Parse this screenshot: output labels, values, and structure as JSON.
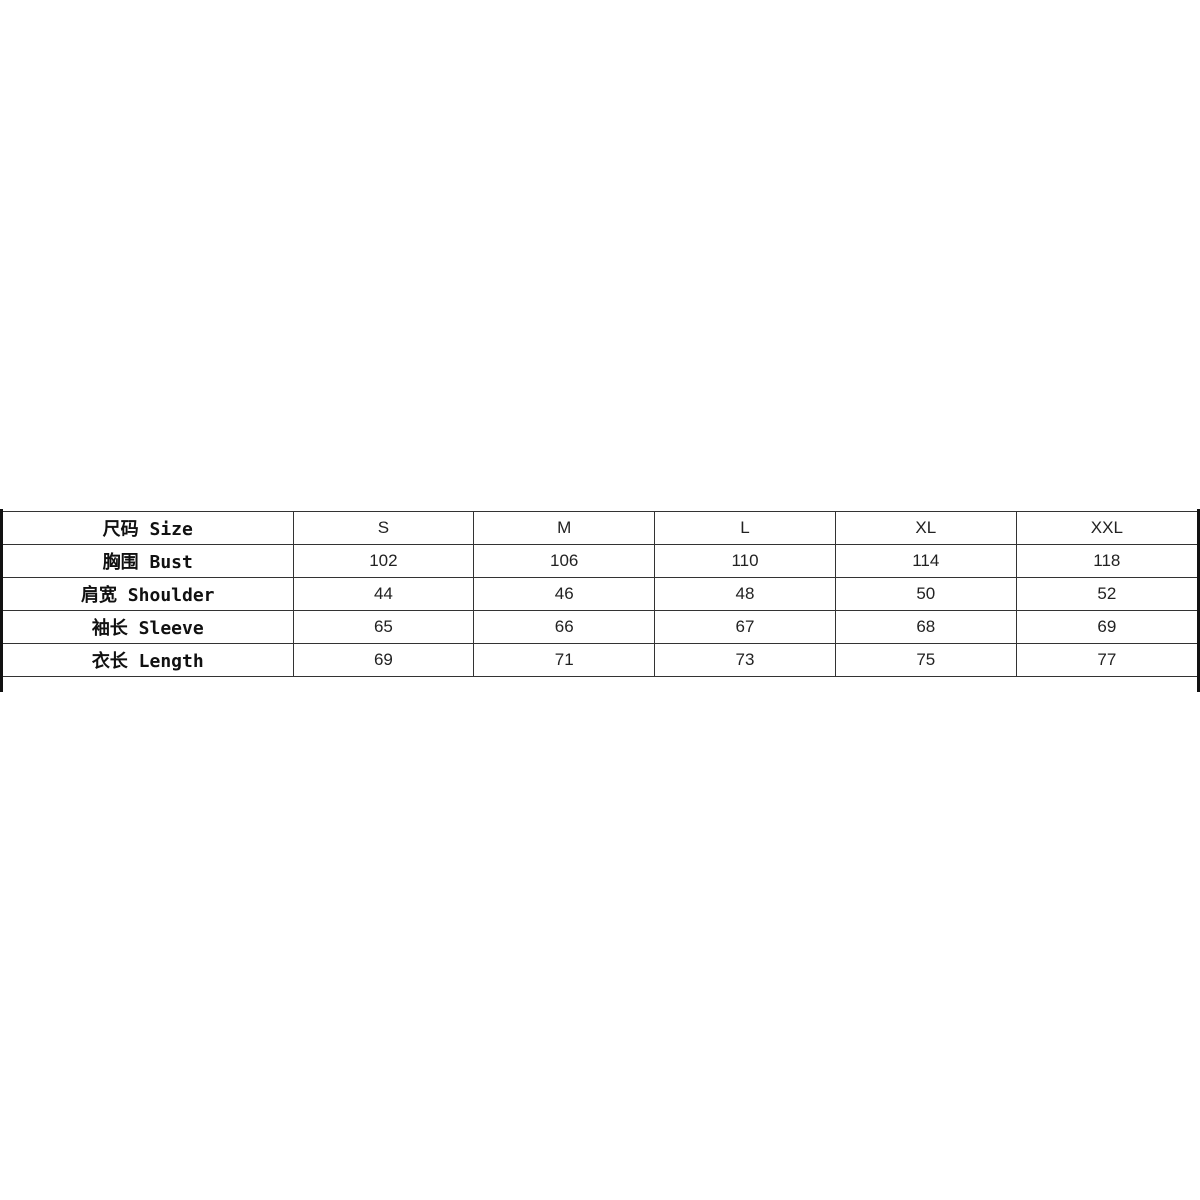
{
  "size_chart": {
    "header": {
      "label": "尺码 Size",
      "sizes": [
        "S",
        "M",
        "L",
        "XL",
        "XXL"
      ]
    },
    "rows": [
      {
        "label": "胸围 Bust",
        "values": [
          "102",
          "106",
          "110",
          "114",
          "118"
        ]
      },
      {
        "label": "肩宽 Shoulder",
        "values": [
          "44",
          "46",
          "48",
          "50",
          "52"
        ]
      },
      {
        "label": "袖长 Sleeve",
        "values": [
          "65",
          "66",
          "67",
          "68",
          "69"
        ]
      },
      {
        "label": "衣长 Length",
        "values": [
          "69",
          "71",
          "73",
          "75",
          "77"
        ]
      }
    ]
  }
}
